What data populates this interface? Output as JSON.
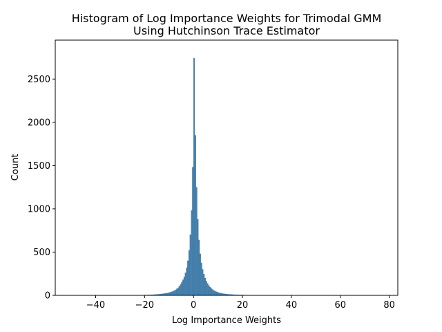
{
  "chart_data": {
    "type": "bar",
    "title_line1": "Histogram of Log Importance Weights for Trimodal GMM",
    "title_line2": "Using Hutchinson Trace Estimator",
    "xlabel": "Log Importance Weights",
    "ylabel": "Count",
    "xlim": [
      -56.5,
      83.5
    ],
    "ylim": [
      0,
      2950
    ],
    "xticks": [
      -40,
      -20,
      0,
      20,
      40,
      60,
      80
    ],
    "xtick_labels": [
      "−40",
      "−20",
      "0",
      "20",
      "40",
      "60",
      "80"
    ],
    "yticks": [
      0,
      500,
      1000,
      1500,
      2000,
      2500
    ],
    "ytick_labels": [
      "0",
      "500",
      "1000",
      "1500",
      "2000",
      "2500"
    ],
    "bar_color": "#4682b0",
    "bar_edge_color": "#3a6f96",
    "bin_width": 0.5,
    "bins": [
      [
        -22.0,
        2
      ],
      [
        -21.5,
        2
      ],
      [
        -21.0,
        3
      ],
      [
        -20.5,
        3
      ],
      [
        -20.0,
        4
      ],
      [
        -19.5,
        4
      ],
      [
        -19.0,
        5
      ],
      [
        -18.5,
        5
      ],
      [
        -18.0,
        6
      ],
      [
        -17.5,
        7
      ],
      [
        -17.0,
        7
      ],
      [
        -16.5,
        8
      ],
      [
        -16.0,
        9
      ],
      [
        -15.5,
        10
      ],
      [
        -15.0,
        11
      ],
      [
        -14.5,
        12
      ],
      [
        -14.0,
        14
      ],
      [
        -13.5,
        15
      ],
      [
        -13.0,
        17
      ],
      [
        -12.5,
        19
      ],
      [
        -12.0,
        21
      ],
      [
        -11.5,
        23
      ],
      [
        -11.0,
        26
      ],
      [
        -10.5,
        29
      ],
      [
        -10.0,
        33
      ],
      [
        -9.5,
        37
      ],
      [
        -9.0,
        42
      ],
      [
        -8.5,
        48
      ],
      [
        -8.0,
        55
      ],
      [
        -7.5,
        64
      ],
      [
        -7.0,
        75
      ],
      [
        -6.5,
        88
      ],
      [
        -6.0,
        105
      ],
      [
        -5.5,
        125
      ],
      [
        -5.0,
        150
      ],
      [
        -4.5,
        180
      ],
      [
        -4.0,
        215
      ],
      [
        -3.5,
        260
      ],
      [
        -3.0,
        320
      ],
      [
        -2.5,
        400
      ],
      [
        -2.0,
        520
      ],
      [
        -1.5,
        700
      ],
      [
        -1.0,
        980
      ],
      [
        -0.5,
        1480
      ],
      [
        0.0,
        2740
      ],
      [
        0.5,
        1850
      ],
      [
        1.0,
        1250
      ],
      [
        1.5,
        880
      ],
      [
        2.0,
        640
      ],
      [
        2.5,
        480
      ],
      [
        3.0,
        375
      ],
      [
        3.5,
        300
      ],
      [
        4.0,
        245
      ],
      [
        4.5,
        200
      ],
      [
        5.0,
        165
      ],
      [
        5.5,
        138
      ],
      [
        6.0,
        115
      ],
      [
        6.5,
        96
      ],
      [
        7.0,
        81
      ],
      [
        7.5,
        68
      ],
      [
        8.0,
        58
      ],
      [
        8.5,
        50
      ],
      [
        9.0,
        43
      ],
      [
        9.5,
        37
      ],
      [
        10.0,
        32
      ],
      [
        10.5,
        28
      ],
      [
        11.0,
        24
      ],
      [
        11.5,
        21
      ],
      [
        12.0,
        19
      ],
      [
        12.5,
        17
      ],
      [
        13.0,
        15
      ],
      [
        13.5,
        13
      ],
      [
        14.0,
        12
      ],
      [
        14.5,
        11
      ],
      [
        15.0,
        10
      ],
      [
        15.5,
        9
      ],
      [
        16.0,
        8
      ],
      [
        16.5,
        7
      ],
      [
        17.0,
        7
      ],
      [
        17.5,
        6
      ],
      [
        18.0,
        6
      ],
      [
        18.5,
        5
      ],
      [
        19.0,
        5
      ],
      [
        19.5,
        4
      ],
      [
        20.0,
        4
      ],
      [
        20.5,
        4
      ],
      [
        21.0,
        3
      ],
      [
        21.5,
        3
      ],
      [
        22.0,
        3
      ],
      [
        22.5,
        2
      ],
      [
        23.0,
        2
      ],
      [
        23.5,
        2
      ],
      [
        24.0,
        2
      ],
      [
        24.5,
        1
      ],
      [
        25.0,
        1
      ]
    ]
  }
}
